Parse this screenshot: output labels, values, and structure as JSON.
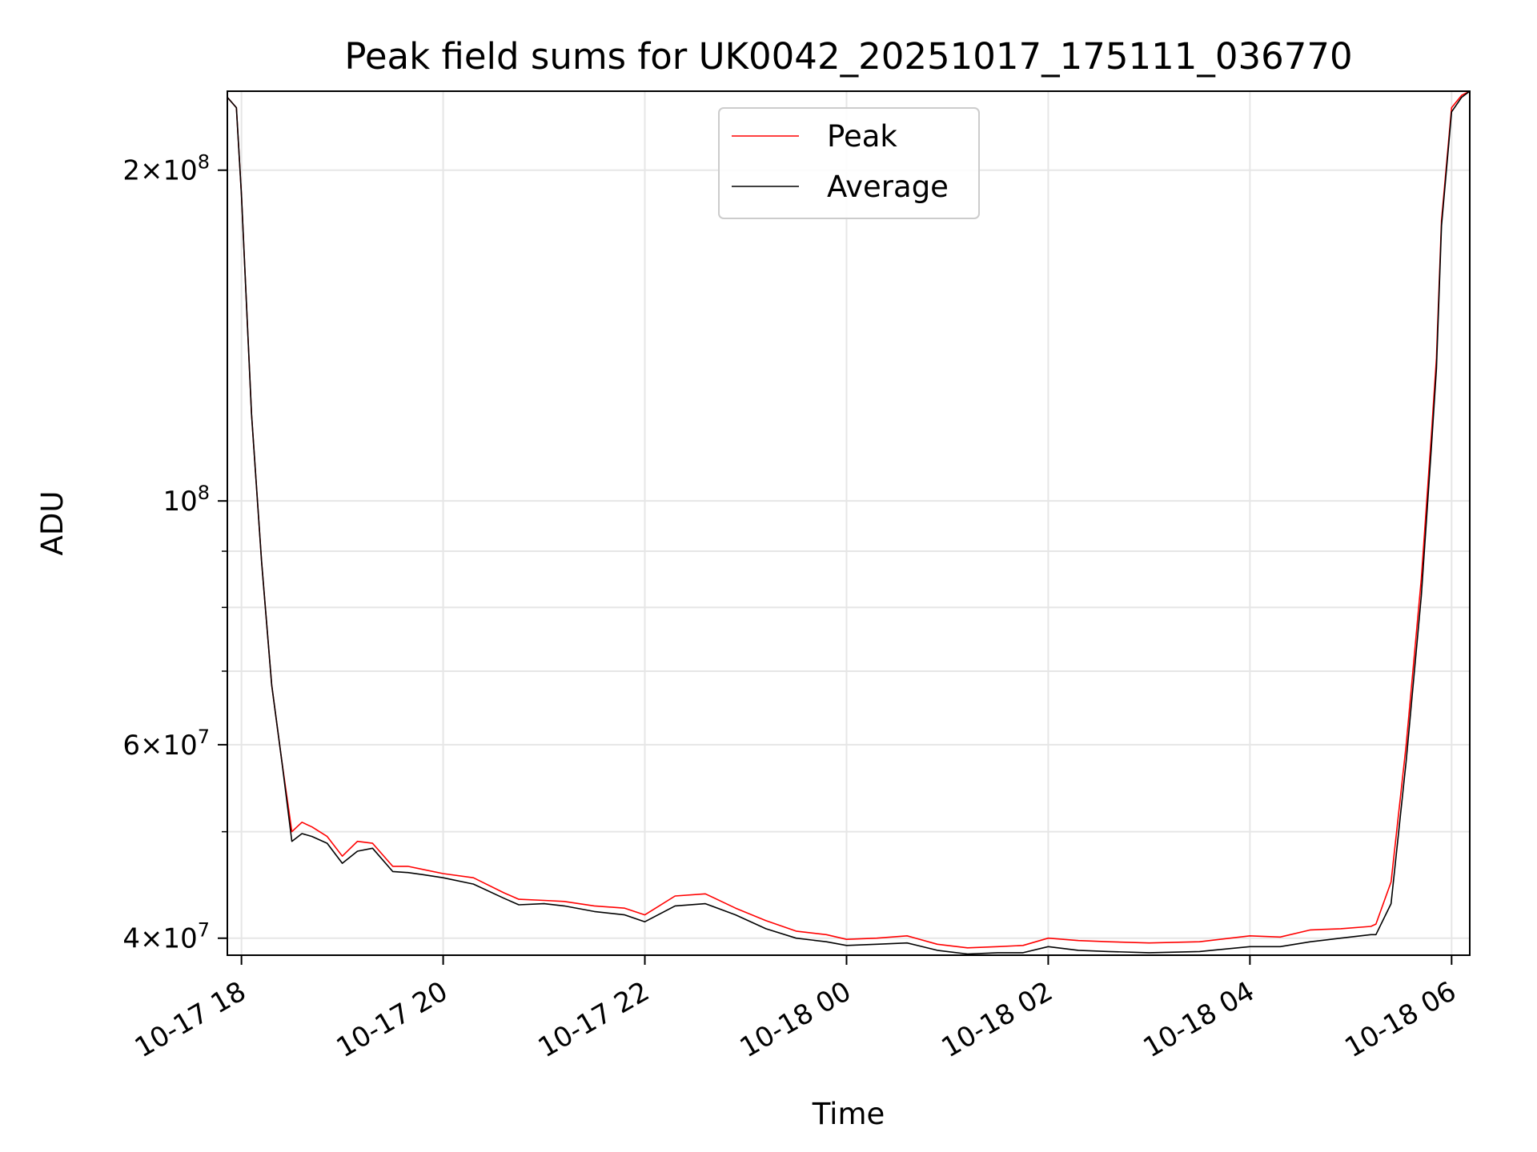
{
  "chart_data": {
    "type": "line",
    "title": "Peak field sums for UK0042_20251017_175111_036770",
    "xlabel": "Time",
    "ylabel": "ADU",
    "yscale": "log",
    "grid": true,
    "legend_position": "upper-center",
    "x_unit": "hours since 2025-10-17 00:00",
    "xlim": [
      17.86,
      30.18
    ],
    "ylim": [
      38600000,
      236000000
    ],
    "x_ticks": [
      {
        "value": 18,
        "label": "10-17 18"
      },
      {
        "value": 20,
        "label": "10-17 20"
      },
      {
        "value": 22,
        "label": "10-17 22"
      },
      {
        "value": 24,
        "label": "10-18 00"
      },
      {
        "value": 26,
        "label": "10-18 02"
      },
      {
        "value": 28,
        "label": "10-18 04"
      },
      {
        "value": 30,
        "label": "10-18 06"
      }
    ],
    "y_ticks": [
      {
        "value": 40000000,
        "mantissa": "4",
        "exponent": "7"
      },
      {
        "value": 60000000,
        "mantissa": "6",
        "exponent": "7"
      },
      {
        "value": 100000000,
        "mantissa": "",
        "exponent": "8"
      },
      {
        "value": 200000000,
        "mantissa": "2",
        "exponent": "8"
      }
    ],
    "y_minor_ticks": [
      50000000,
      70000000,
      80000000,
      90000000
    ],
    "series": [
      {
        "name": "Peak",
        "color": "#ff0000",
        "x": [
          17.86,
          17.95,
          18.0,
          18.1,
          18.2,
          18.3,
          18.4,
          18.5,
          18.6,
          18.7,
          18.85,
          19.0,
          19.15,
          19.3,
          19.5,
          19.65,
          19.8,
          20.0,
          20.3,
          20.6,
          20.75,
          21.0,
          21.2,
          21.5,
          21.8,
          22.0,
          22.3,
          22.6,
          22.9,
          23.2,
          23.5,
          23.8,
          24.0,
          24.3,
          24.6,
          24.9,
          25.2,
          25.5,
          25.75,
          26.0,
          26.3,
          26.6,
          27.0,
          27.5,
          28.0,
          28.3,
          28.6,
          28.9,
          29.2,
          29.25,
          29.4,
          29.55,
          29.7,
          29.8,
          29.85,
          29.9,
          30.0,
          30.1,
          30.18
        ],
        "y": [
          233000000,
          228000000,
          190000000,
          120000000,
          88000000,
          68000000,
          58000000,
          50000000,
          51000000,
          50500000,
          49500000,
          47500000,
          49000000,
          48800000,
          46500000,
          46500000,
          46200000,
          45800000,
          45400000,
          44000000,
          43400000,
          43300000,
          43200000,
          42800000,
          42600000,
          42000000,
          43700000,
          43900000,
          42600000,
          41500000,
          40600000,
          40300000,
          39900000,
          40000000,
          40200000,
          39500000,
          39200000,
          39300000,
          39400000,
          40000000,
          39800000,
          39700000,
          39600000,
          39700000,
          40200000,
          40100000,
          40700000,
          40800000,
          41000000,
          41200000,
          45000000,
          60000000,
          85000000,
          115000000,
          135000000,
          180000000,
          228000000,
          234000000,
          236000000
        ]
      },
      {
        "name": "Average",
        "color": "#000000",
        "x": [
          17.86,
          17.95,
          18.0,
          18.1,
          18.2,
          18.3,
          18.4,
          18.5,
          18.6,
          18.7,
          18.85,
          19.0,
          19.15,
          19.3,
          19.5,
          19.65,
          19.8,
          20.0,
          20.3,
          20.6,
          20.75,
          21.0,
          21.2,
          21.5,
          21.8,
          22.0,
          22.3,
          22.6,
          22.9,
          23.2,
          23.5,
          23.8,
          24.0,
          24.3,
          24.6,
          24.9,
          25.2,
          25.5,
          25.75,
          26.0,
          26.3,
          26.6,
          27.0,
          27.5,
          28.0,
          28.3,
          28.6,
          28.9,
          29.2,
          29.25,
          29.4,
          29.55,
          29.7,
          29.8,
          29.85,
          29.9,
          30.0,
          30.1,
          30.18
        ],
        "y": [
          233000000,
          228000000,
          190000000,
          120000000,
          88000000,
          68000000,
          58000000,
          49000000,
          49800000,
          49500000,
          48800000,
          46800000,
          48000000,
          48300000,
          46000000,
          45900000,
          45700000,
          45400000,
          44800000,
          43500000,
          42900000,
          43000000,
          42800000,
          42300000,
          42000000,
          41400000,
          42800000,
          43000000,
          42000000,
          40800000,
          40000000,
          39700000,
          39400000,
          39500000,
          39600000,
          39000000,
          38700000,
          38800000,
          38800000,
          39300000,
          39000000,
          38900000,
          38800000,
          38900000,
          39300000,
          39300000,
          39700000,
          40000000,
          40300000,
          40300000,
          43000000,
          58000000,
          82000000,
          112000000,
          132000000,
          178000000,
          226000000,
          233000000,
          236000000
        ]
      }
    ]
  }
}
